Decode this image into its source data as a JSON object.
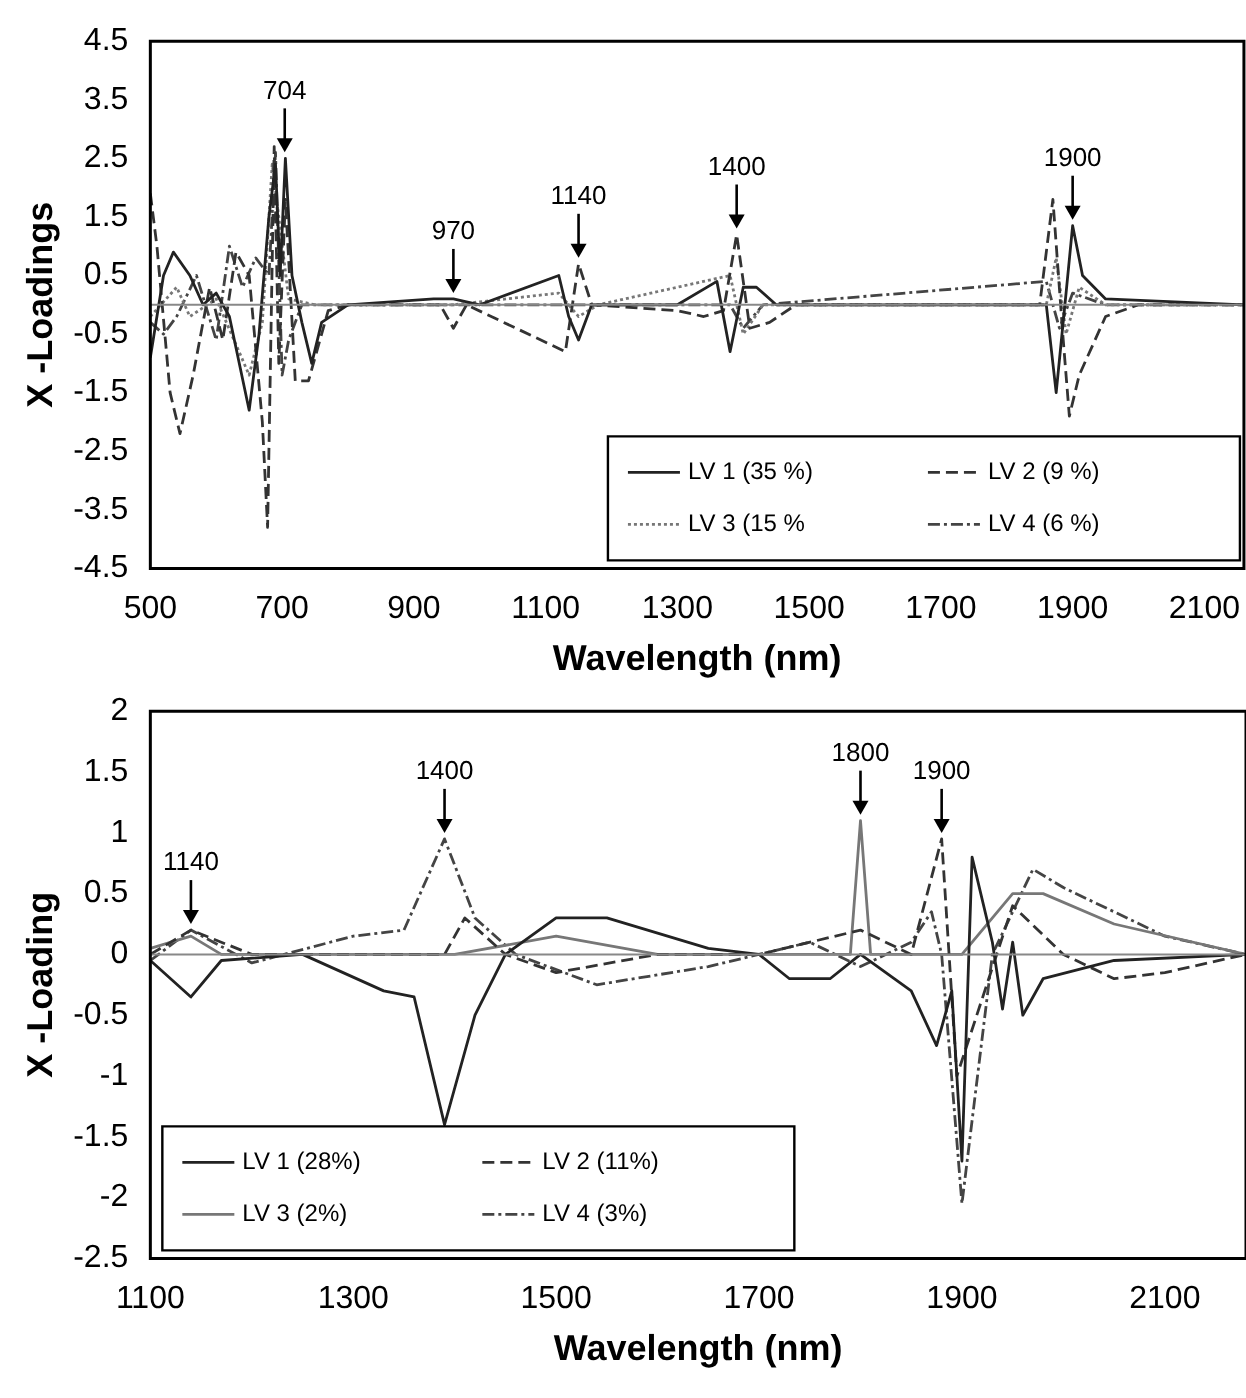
{
  "chart_data": [
    {
      "type": "line",
      "xlabel": "Wavelength (nm)",
      "ylabel": "X -Loadings",
      "xlim": [
        500,
        2160
      ],
      "xticks": [
        500,
        700,
        900,
        1100,
        1300,
        1500,
        1700,
        1900,
        2100
      ],
      "ylim": [
        -4.5,
        4.5
      ],
      "yticks": [
        -4.5,
        -3.5,
        -2.5,
        -1.5,
        -0.5,
        0.5,
        1.5,
        2.5,
        3.5,
        4.5
      ],
      "grid": false,
      "legend": "bottom right",
      "marker": "none",
      "ref_lines": [
        {
          "axis": "y",
          "value": 0,
          "color": "#888888"
        }
      ],
      "annotations": [
        {
          "text": "704",
          "x": 704,
          "y": 2.5
        },
        {
          "text": "970",
          "x": 960,
          "y": 0.1
        },
        {
          "text": "1140",
          "x": 1150,
          "y": 0.7
        },
        {
          "text": "1400",
          "x": 1390,
          "y": 1.2
        },
        {
          "text": "1900",
          "x": 1900,
          "y": 1.35
        }
      ],
      "series": [
        {
          "name": "LV 1 (35 %)",
          "color": "#222222",
          "line_style": "solid",
          "x": [
            500,
            520,
            535,
            560,
            580,
            600,
            620,
            650,
            665,
            680,
            690,
            697,
            705,
            715,
            730,
            745,
            760,
            800,
            930,
            960,
            1000,
            1120,
            1135,
            1150,
            1170,
            1300,
            1360,
            1380,
            1400,
            1420,
            1450,
            1860,
            1875,
            1890,
            1900,
            1915,
            1950,
            2160
          ],
          "values": [
            -0.9,
            0.5,
            0.9,
            0.5,
            0,
            0.2,
            -0.2,
            -1.8,
            -0.5,
            1.5,
            2.4,
            0.5,
            2.5,
            0.5,
            -0.3,
            -1,
            -0.3,
            0,
            0.1,
            0.1,
            0,
            0.5,
            -0.2,
            -0.6,
            0,
            0,
            0.4,
            -0.8,
            0.3,
            0.3,
            0,
            0,
            -1.5,
            0.2,
            1.35,
            0.5,
            0.1,
            0
          ]
        },
        {
          "name": "LV 2 (9 %)",
          "color": "#333333",
          "line_style": "dashed",
          "x": [
            500,
            510,
            530,
            545,
            565,
            590,
            610,
            630,
            650,
            670,
            678,
            688,
            695,
            705,
            720,
            740,
            770,
            800,
            940,
            960,
            980,
            1130,
            1150,
            1170,
            1300,
            1340,
            1370,
            1390,
            1410,
            1440,
            1480,
            1850,
            1870,
            1885,
            1895,
            1910,
            1950,
            2000,
            2160
          ],
          "values": [
            1.9,
            1,
            -1.5,
            -2.2,
            -1.2,
            0.3,
            -0.6,
            0.9,
            0.5,
            -2,
            -3.8,
            2.7,
            -1,
            1.8,
            -1.3,
            -1.3,
            -0.1,
            0,
            0,
            -0.4,
            0,
            -0.8,
            0.7,
            0,
            -0.1,
            -0.2,
            -0.1,
            1.2,
            -0.4,
            -0.3,
            0,
            0,
            1.8,
            -0.5,
            -1.9,
            -1.2,
            -0.2,
            0,
            0
          ]
        },
        {
          "name": "LV 3 (15 %",
          "color": "#777777",
          "line_style": "dotted",
          "x": [
            500,
            540,
            560,
            600,
            650,
            670,
            685,
            695,
            710,
            750,
            960,
            1120,
            1150,
            1180,
            1380,
            1400,
            1430,
            1860,
            1875,
            1890,
            1910,
            1950,
            2160
          ],
          "values": [
            -0.2,
            0.3,
            -0.2,
            0.1,
            -1.2,
            -0.3,
            2.4,
            1.5,
            0.1,
            0,
            0,
            0.2,
            -0.2,
            0,
            0.5,
            -0.5,
            0,
            0,
            0.8,
            -0.5,
            0.3,
            0,
            0
          ]
        },
        {
          "name": "LV 4 (6 %)",
          "color": "#444444",
          "line_style": "dashdot",
          "x": [
            500,
            520,
            540,
            570,
            600,
            620,
            640,
            660,
            680,
            690,
            700,
            710,
            730,
            800,
            1380,
            1400,
            1430,
            1860,
            1880,
            1900,
            1950,
            2160
          ],
          "values": [
            -0.3,
            -0.5,
            -0.2,
            0.5,
            -0.6,
            1,
            0.3,
            0.8,
            0.5,
            2.6,
            -1.2,
            -0.6,
            0,
            0,
            0,
            -0.4,
            0,
            0.4,
            -0.4,
            0.2,
            0,
            0
          ]
        }
      ]
    },
    {
      "type": "line",
      "xlabel": "Wavelength (nm)",
      "ylabel": "X -Loading",
      "xlim": [
        1100,
        2180
      ],
      "xticks": [
        1100,
        1300,
        1500,
        1700,
        1900,
        2100
      ],
      "ylim": [
        -2.5,
        2
      ],
      "yticks": [
        -2.5,
        -2,
        -1.5,
        -1,
        -0.5,
        0,
        0.5,
        1,
        1.5,
        2
      ],
      "grid": false,
      "legend": "bottom left",
      "marker": "none",
      "ref_lines": [
        {
          "axis": "y",
          "value": 0,
          "color": "#888888"
        }
      ],
      "annotations": [
        {
          "text": "1140",
          "x": 1140,
          "y": 0.2
        },
        {
          "text": "1400",
          "x": 1390,
          "y": 0.95
        },
        {
          "text": "1800",
          "x": 1800,
          "y": 1.1
        },
        {
          "text": "1900",
          "x": 1880,
          "y": 0.95
        }
      ],
      "series": [
        {
          "name": "LV 1 (28%)",
          "color": "#222222",
          "line_style": "solid",
          "x": [
            1100,
            1140,
            1170,
            1250,
            1330,
            1360,
            1390,
            1420,
            1450,
            1500,
            1550,
            1650,
            1700,
            1730,
            1770,
            1800,
            1850,
            1875,
            1890,
            1900,
            1910,
            1930,
            1940,
            1950,
            1960,
            1980,
            2050,
            2180
          ],
          "values": [
            -0.05,
            -0.35,
            -0.05,
            0,
            -0.3,
            -0.35,
            -1.4,
            -0.5,
            0,
            0.3,
            0.3,
            0.05,
            0,
            -0.2,
            -0.2,
            0,
            -0.3,
            -0.75,
            -0.3,
            -1.7,
            0.8,
            0.1,
            -0.45,
            0.1,
            -0.5,
            -0.2,
            -0.05,
            0
          ]
        },
        {
          "name": "LV 2 (11%)",
          "color": "#333333",
          "line_style": "dashed",
          "x": [
            1100,
            1140,
            1200,
            1350,
            1390,
            1410,
            1450,
            1500,
            1600,
            1700,
            1800,
            1850,
            1880,
            1895,
            1950,
            2000,
            2050,
            2100,
            2180
          ],
          "values": [
            0,
            0.2,
            0,
            0,
            0,
            0.3,
            0,
            -0.15,
            0,
            0,
            0.2,
            0,
            0.95,
            -1,
            0.4,
            0,
            -0.2,
            -0.15,
            0
          ]
        },
        {
          "name": "LV 3 (2%)",
          "color": "#777777",
          "line_style": "solid",
          "x": [
            1100,
            1140,
            1170,
            1400,
            1500,
            1600,
            1790,
            1800,
            1810,
            1900,
            1950,
            1980,
            2050,
            2180
          ],
          "values": [
            0.05,
            0.15,
            0,
            0,
            0.15,
            0,
            0,
            1.1,
            0,
            0,
            0.5,
            0.5,
            0.25,
            0
          ]
        },
        {
          "name": "LV 4 (3%)",
          "color": "#444444",
          "line_style": "dashdot",
          "x": [
            1100,
            1140,
            1200,
            1300,
            1350,
            1390,
            1420,
            1460,
            1540,
            1650,
            1750,
            1800,
            1850,
            1870,
            1880,
            1900,
            1930,
            1970,
            2000,
            2100,
            2180
          ],
          "values": [
            -0.05,
            0.2,
            -0.07,
            0.15,
            0.2,
            0.95,
            0.3,
            0,
            -0.25,
            -0.1,
            0.1,
            -0.1,
            0.1,
            0.35,
            0,
            -2.05,
            0,
            0.7,
            0.55,
            0.15,
            0
          ]
        }
      ]
    }
  ]
}
